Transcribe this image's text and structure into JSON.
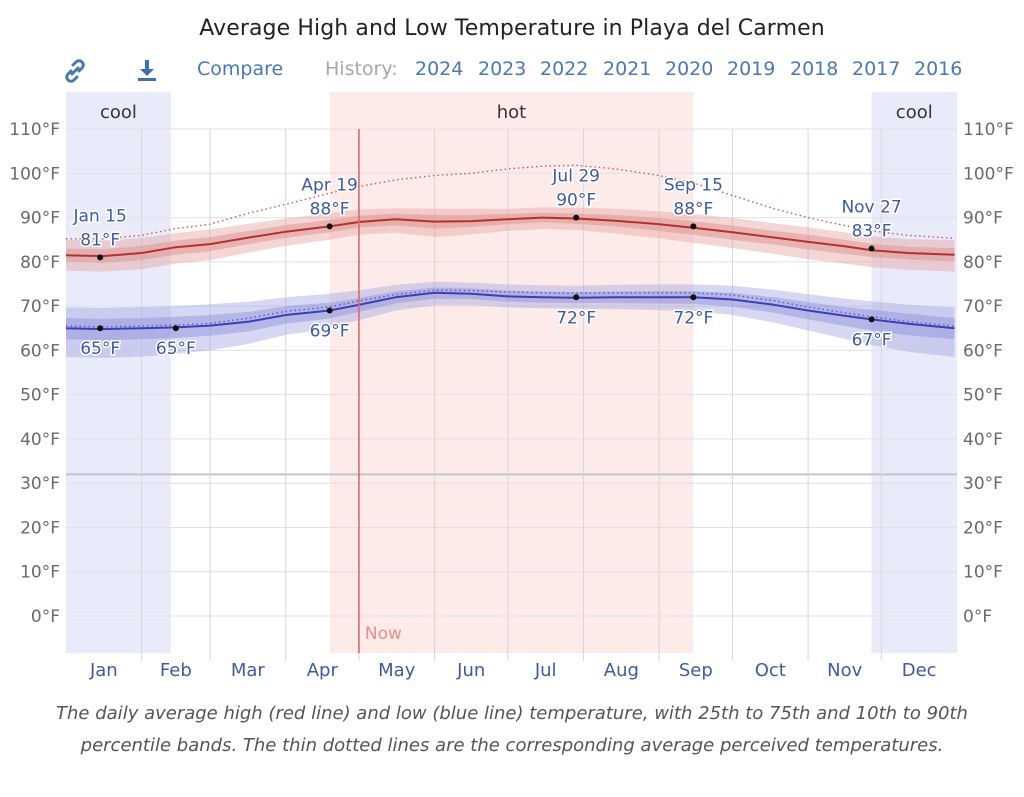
{
  "title": "Average High and Low Temperature in Playa del Carmen",
  "toolbar": {
    "link_icon": "link-icon",
    "download_icon": "download-icon",
    "compare_label": "Compare",
    "history_label": "History:",
    "years": [
      "2024",
      "2023",
      "2022",
      "2021",
      "2020",
      "2019",
      "2018",
      "2017",
      "2016"
    ]
  },
  "colors": {
    "accent_link": "#4a78b0",
    "high_line": "#b7312c",
    "low_line": "#3b3fb6",
    "hot_band": "#fdebea",
    "cool_band": "#e9ebfa",
    "now_line": "#d9696b"
  },
  "caption": "The daily average high (red line) and low (blue line) temperature, with 25th to 75th and 10th to 90th percentile bands. The thin dotted lines are the corresponding average perceived temperatures.",
  "chart_data": {
    "type": "line",
    "title": "Average High and Low Temperature in Playa del Carmen",
    "xlabel": "",
    "ylabel": "",
    "x_unit": "day_of_year",
    "xlim": [
      0,
      365
    ],
    "ylim": [
      -9,
      117
    ],
    "grid": true,
    "y_ticks": [
      0,
      10,
      20,
      30,
      40,
      50,
      60,
      70,
      80,
      90,
      100,
      110
    ],
    "y_tick_labels": [
      "0°F",
      "10°F",
      "20°F",
      "30°F",
      "40°F",
      "50°F",
      "60°F",
      "70°F",
      "80°F",
      "90°F",
      "100°F",
      "110°F"
    ],
    "y_axes": [
      "left",
      "right"
    ],
    "freezing_line": 32,
    "month_labels": [
      "Jan",
      "Feb",
      "Mar",
      "Apr",
      "May",
      "Jun",
      "Jul",
      "Aug",
      "Sep",
      "Oct",
      "Nov",
      "Dec"
    ],
    "month_starts": [
      0,
      31,
      59,
      90,
      120,
      151,
      181,
      212,
      243,
      273,
      304,
      334,
      365
    ],
    "seasons": [
      {
        "label": "cool",
        "start": 0,
        "end": 43,
        "kind": "cool",
        "show_label": true
      },
      {
        "label": "hot",
        "start": 108,
        "end": 257,
        "kind": "hot",
        "show_label": true
      },
      {
        "label": "cool",
        "start": 330,
        "end": 365,
        "kind": "cool",
        "show_label": true
      }
    ],
    "now": {
      "label": "Now",
      "day": 120
    },
    "x": [
      0,
      15,
      31,
      45,
      59,
      75,
      90,
      108,
      120,
      135,
      151,
      166,
      181,
      195,
      209,
      225,
      243,
      257,
      273,
      290,
      304,
      319,
      330,
      345,
      364
    ],
    "series": [
      {
        "name": "Average high",
        "values": [
          81.5,
          81.3,
          82.0,
          83.3,
          84.0,
          85.5,
          86.8,
          88.0,
          89.0,
          89.6,
          89.1,
          89.2,
          89.6,
          90.0,
          89.8,
          89.3,
          88.5,
          87.7,
          86.7,
          85.5,
          84.5,
          83.5,
          82.6,
          82.0,
          81.6
        ]
      },
      {
        "name": "High 25th percentile",
        "values": [
          80.0,
          79.8,
          80.4,
          81.6,
          82.4,
          84.0,
          85.4,
          86.7,
          87.8,
          88.2,
          87.5,
          87.9,
          88.5,
          88.9,
          88.6,
          88.0,
          87.0,
          86.1,
          85.0,
          83.9,
          82.8,
          81.8,
          81.1,
          80.5,
          80.1
        ]
      },
      {
        "name": "High 75th percentile",
        "values": [
          83.0,
          82.8,
          83.6,
          84.8,
          85.6,
          87.0,
          88.3,
          89.5,
          90.4,
          90.9,
          90.6,
          90.6,
          90.8,
          91.1,
          90.9,
          90.6,
          89.9,
          89.2,
          88.2,
          87.0,
          86.1,
          85.0,
          84.1,
          83.4,
          83.1
        ]
      },
      {
        "name": "High 10th percentile",
        "values": [
          78.0,
          77.8,
          78.3,
          79.6,
          80.4,
          82.1,
          83.6,
          85.0,
          86.1,
          86.6,
          85.6,
          86.2,
          87.0,
          87.4,
          87.2,
          86.4,
          85.3,
          84.3,
          83.1,
          81.8,
          80.6,
          79.6,
          78.8,
          78.2,
          77.8
        ]
      },
      {
        "name": "High 90th percentile",
        "values": [
          85.0,
          84.8,
          85.4,
          86.5,
          87.3,
          88.6,
          89.8,
          91.0,
          91.8,
          92.1,
          92.0,
          92.0,
          92.0,
          92.3,
          92.2,
          92.0,
          91.4,
          90.8,
          89.9,
          88.7,
          87.8,
          86.7,
          85.8,
          85.1,
          84.9
        ]
      },
      {
        "name": "Perceived high",
        "values": [
          85.2,
          85.2,
          86.0,
          87.5,
          88.5,
          91.0,
          93.0,
          95.5,
          97.0,
          98.5,
          99.5,
          100.0,
          101.0,
          101.6,
          101.8,
          101.0,
          99.5,
          97.8,
          95.0,
          92.0,
          90.0,
          88.2,
          87.0,
          86.0,
          85.3
        ]
      },
      {
        "name": "Average low",
        "values": [
          65.0,
          64.8,
          65.0,
          65.2,
          65.6,
          66.5,
          68.0,
          69.0,
          70.3,
          72.0,
          73.0,
          72.8,
          72.2,
          72.0,
          71.9,
          72.0,
          72.0,
          72.0,
          71.5,
          70.3,
          69.0,
          67.8,
          67.0,
          66.0,
          65.0
        ]
      },
      {
        "name": "Low 25th percentile",
        "values": [
          62.5,
          62.3,
          62.5,
          62.8,
          63.3,
          64.3,
          66.0,
          67.2,
          68.7,
          70.6,
          71.7,
          71.6,
          71.0,
          70.8,
          70.7,
          70.7,
          70.6,
          70.5,
          69.9,
          68.5,
          67.0,
          65.5,
          64.5,
          63.4,
          62.5
        ]
      },
      {
        "name": "Low 75th percentile",
        "values": [
          67.3,
          67.1,
          67.3,
          67.6,
          68.0,
          68.7,
          70.0,
          70.8,
          71.8,
          73.3,
          74.2,
          74.0,
          73.5,
          73.3,
          73.2,
          73.3,
          73.4,
          73.4,
          73.0,
          72.0,
          70.9,
          69.8,
          69.2,
          68.3,
          67.3
        ]
      },
      {
        "name": "Low 10th percentile",
        "values": [
          58.5,
          58.3,
          58.6,
          59.2,
          60.0,
          61.5,
          63.5,
          65.0,
          66.8,
          69.0,
          70.2,
          70.2,
          69.7,
          69.5,
          69.4,
          69.3,
          69.1,
          68.9,
          68.0,
          66.3,
          64.5,
          62.6,
          61.2,
          59.7,
          58.5
        ]
      },
      {
        "name": "Low 90th percentile",
        "values": [
          69.7,
          69.6,
          69.8,
          70.0,
          70.4,
          71.0,
          72.0,
          72.8,
          73.6,
          74.8,
          75.5,
          75.3,
          74.9,
          74.7,
          74.6,
          74.8,
          74.9,
          74.9,
          74.6,
          73.7,
          72.7,
          71.7,
          71.1,
          70.3,
          69.7
        ]
      },
      {
        "name": "Perceived low",
        "values": [
          65.5,
          65.3,
          65.5,
          65.7,
          66.1,
          67.3,
          68.8,
          69.8,
          71.2,
          72.6,
          73.6,
          73.5,
          73.2,
          73.0,
          72.9,
          73.0,
          73.0,
          73.0,
          72.5,
          71.2,
          69.8,
          68.5,
          67.6,
          66.5,
          65.5
        ]
      }
    ],
    "annotations": [
      {
        "date": "Jan 15",
        "day": 14,
        "value": 81,
        "text": "81°F",
        "series": "high",
        "position": "above"
      },
      {
        "date": "Apr 19",
        "day": 108,
        "value": 88,
        "text": "88°F",
        "series": "high",
        "position": "above"
      },
      {
        "date": "Jul 29",
        "day": 209,
        "value": 90,
        "text": "90°F",
        "series": "high",
        "position": "above"
      },
      {
        "date": "Sep 15",
        "day": 257,
        "value": 88,
        "text": "88°F",
        "series": "high",
        "position": "above"
      },
      {
        "date": "Nov 27",
        "day": 330,
        "value": 83,
        "text": "83°F",
        "series": "high",
        "position": "above"
      },
      {
        "date": "",
        "day": 14,
        "value": 65,
        "text": "65°F",
        "series": "low",
        "position": "below"
      },
      {
        "date": "",
        "day": 45,
        "value": 65,
        "text": "65°F",
        "series": "low",
        "position": "below"
      },
      {
        "date": "",
        "day": 108,
        "value": 69,
        "text": "69°F",
        "series": "low",
        "position": "below"
      },
      {
        "date": "",
        "day": 209,
        "value": 72,
        "text": "72°F",
        "series": "low",
        "position": "below"
      },
      {
        "date": "",
        "day": 257,
        "value": 72,
        "text": "72°F",
        "series": "low",
        "position": "below"
      },
      {
        "date": "",
        "day": 330,
        "value": 67,
        "text": "67°F",
        "series": "low",
        "position": "below"
      }
    ]
  }
}
